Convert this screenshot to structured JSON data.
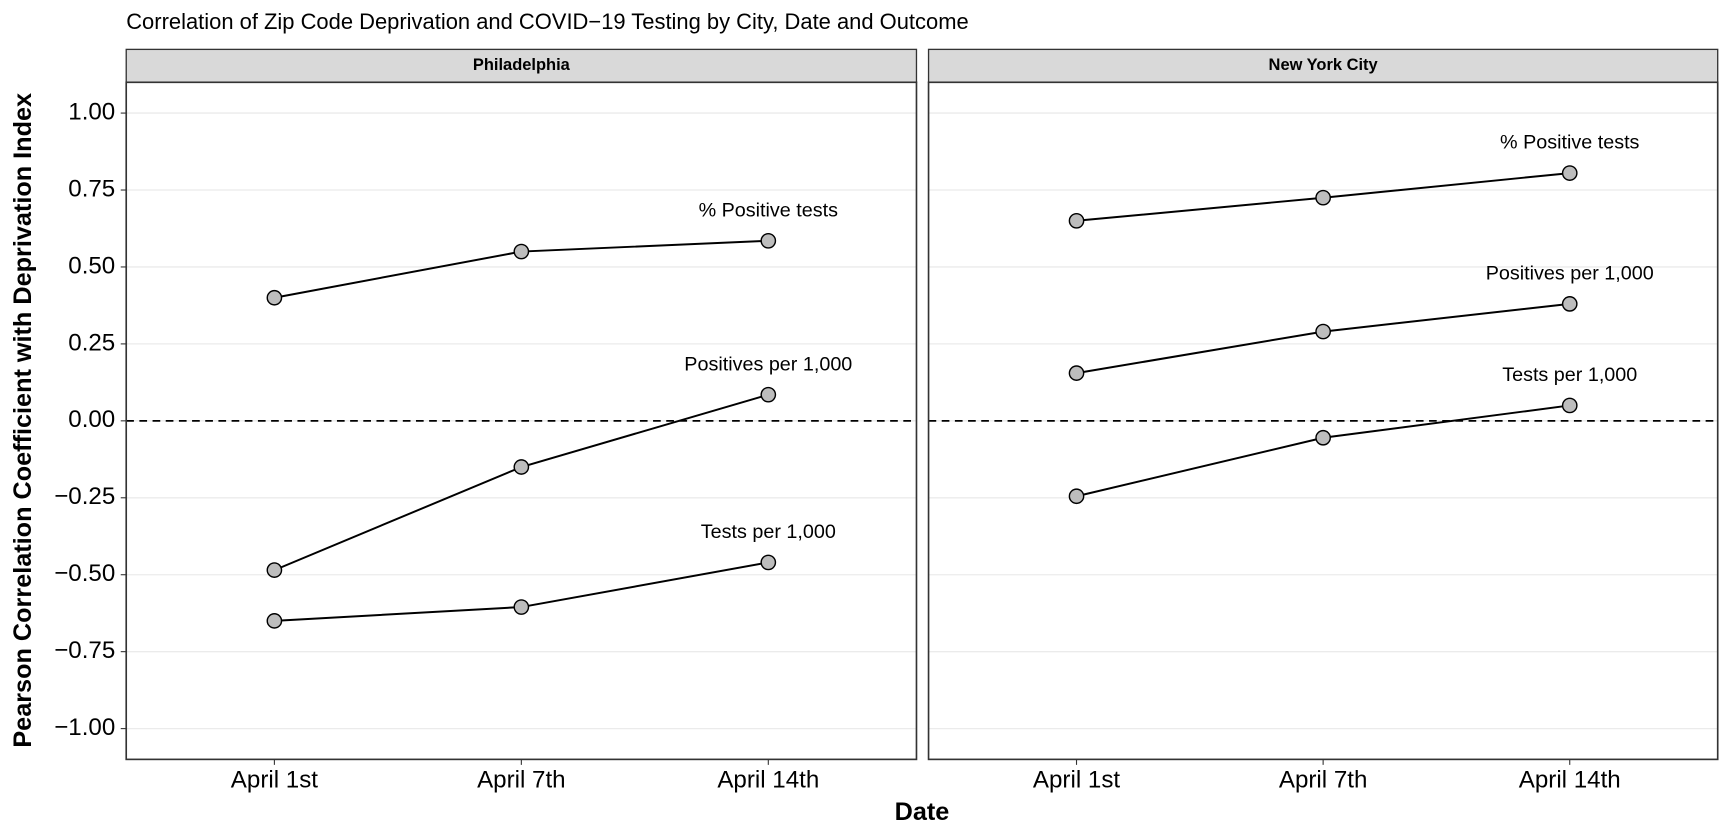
{
  "chart_data": {
    "type": "line",
    "title": "Correlation of Zip Code Deprivation and COVID−19 Testing by City, Date and Outcome",
    "xlabel": "Date",
    "ylabel": "Pearson Correlation Coefficient with Deprivation Index",
    "categories": [
      "April 1st",
      "April 7th",
      "April 14th"
    ],
    "ylim": [
      -1.1,
      1.1
    ],
    "yticks": [
      {
        "value": 1,
        "label": "1.00"
      },
      {
        "value": 0.75,
        "label": "0.75"
      },
      {
        "value": 0.5,
        "label": "0.50"
      },
      {
        "value": 0.25,
        "label": "0.25"
      },
      {
        "value": 0,
        "label": "0.00"
      },
      {
        "value": -0.25,
        "label": "−0.25"
      },
      {
        "value": -0.5,
        "label": "−0.50"
      },
      {
        "value": -0.75,
        "label": "−0.75"
      },
      {
        "value": -1,
        "label": "−1.00"
      }
    ],
    "grid": "y",
    "hline": 0,
    "line_color": "#000000",
    "point_color": "#bdbdbd",
    "facets": [
      {
        "title": "Philadelphia",
        "series": [
          {
            "name": "% Positive tests",
            "values": [
              0.4,
              0.55,
              0.585
            ]
          },
          {
            "name": "Positives per 1,000",
            "values": [
              -0.485,
              -0.15,
              0.085
            ]
          },
          {
            "name": "Tests per 1,000",
            "values": [
              -0.65,
              -0.605,
              -0.46
            ]
          }
        ]
      },
      {
        "title": "New York City",
        "series": [
          {
            "name": "% Positive tests",
            "values": [
              0.65,
              0.725,
              0.805
            ]
          },
          {
            "name": "Positives per 1,000",
            "values": [
              0.155,
              0.29,
              0.38
            ]
          },
          {
            "name": "Tests per 1,000",
            "values": [
              -0.245,
              -0.055,
              0.05
            ]
          }
        ]
      }
    ]
  }
}
